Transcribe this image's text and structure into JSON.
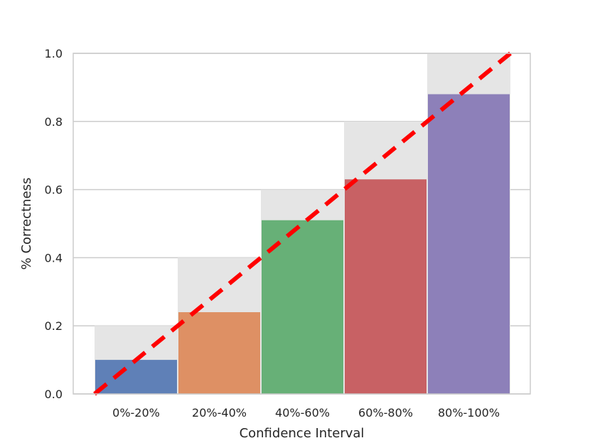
{
  "chart_data": {
    "type": "bar",
    "title": "",
    "xlabel": "Confidence Interval",
    "ylabel": "% Correctness",
    "categories": [
      "0%-20%",
      "20%-40%",
      "40%-60%",
      "60%-80%",
      "80%-100%"
    ],
    "values": [
      0.1,
      0.24,
      0.51,
      0.63,
      0.88
    ],
    "expected": [
      0.2,
      0.4,
      0.6,
      0.8,
      1.0
    ],
    "bar_colors": [
      "#4c72b0",
      "#dd8452",
      "#55a868",
      "#c44e52",
      "#8172b3"
    ],
    "expected_color": "#e5e5e5",
    "reference_line": {
      "from": [
        0.0,
        0.0
      ],
      "to": [
        1.0,
        1.0
      ],
      "color": "#ff0000",
      "style": "dashed"
    },
    "ylim": [
      0.0,
      1.0
    ],
    "yticks": [
      "0.0",
      "0.2",
      "0.4",
      "0.6",
      "0.8",
      "1.0"
    ],
    "grid": true,
    "legend": "none"
  }
}
